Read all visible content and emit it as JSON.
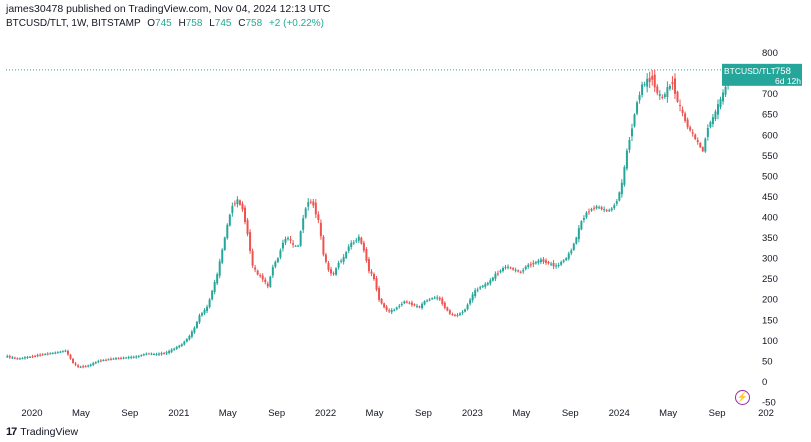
{
  "header": {
    "publish_text": "james30478 published on TradingView.com, Nov 04, 2024 12:13 UTC"
  },
  "legend": {
    "symbol": "BTCUSD/TLT, 1W, BITSTAMP",
    "o_label": "O",
    "o_value": "745",
    "h_label": "H",
    "h_value": "758",
    "l_label": "L",
    "l_value": "745",
    "c_label": "C",
    "c_value": "758",
    "change": "+2 (+0.22%)"
  },
  "price_tag": {
    "label": "BTCUSD/TLT",
    "value": "758",
    "countdown": "6d 12h"
  },
  "footer": {
    "brand": "TradingView",
    "logo": "17"
  },
  "icons": {
    "lightning": "lightning-icon"
  },
  "colors": {
    "up": "#26a69a",
    "down": "#ef5350",
    "price_line": "#26a69a",
    "accent": "#9c27b0"
  },
  "chart_data": {
    "type": "candlestick",
    "title": "BTCUSD/TLT, 1W, BITSTAMP",
    "ylim": [
      -50,
      850
    ],
    "y_ticks": [
      800,
      750,
      700,
      650,
      600,
      550,
      500,
      450,
      400,
      350,
      300,
      250,
      200,
      150,
      100,
      50,
      0,
      -50
    ],
    "x_ticks": [
      "2020",
      "May",
      "Sep",
      "2021",
      "May",
      "Sep",
      "2022",
      "May",
      "Sep",
      "2023",
      "May",
      "Sep",
      "2024",
      "May",
      "Sep",
      "202"
    ],
    "current_price": 758,
    "grid": false,
    "path": [
      [
        0,
        62
      ],
      [
        5,
        55
      ],
      [
        10,
        60
      ],
      [
        14,
        65
      ],
      [
        20,
        70
      ],
      [
        24,
        75
      ],
      [
        27,
        45
      ],
      [
        29,
        35
      ],
      [
        33,
        38
      ],
      [
        37,
        50
      ],
      [
        42,
        55
      ],
      [
        46,
        57
      ],
      [
        52,
        60
      ],
      [
        56,
        68
      ],
      [
        60,
        66
      ],
      [
        64,
        70
      ],
      [
        67,
        80
      ],
      [
        70,
        90
      ],
      [
        73,
        110
      ],
      [
        75,
        130
      ],
      [
        77,
        160
      ],
      [
        80,
        180
      ],
      [
        82,
        220
      ],
      [
        84,
        260
      ],
      [
        86,
        320
      ],
      [
        88,
        380
      ],
      [
        90,
        430
      ],
      [
        92,
        440
      ],
      [
        94,
        420
      ],
      [
        96,
        360
      ],
      [
        98,
        280
      ],
      [
        100,
        260
      ],
      [
        102,
        250
      ],
      [
        104,
        230
      ],
      [
        106,
        280
      ],
      [
        108,
        300
      ],
      [
        110,
        340
      ],
      [
        112,
        350
      ],
      [
        114,
        330
      ],
      [
        116,
        330
      ],
      [
        118,
        400
      ],
      [
        120,
        440
      ],
      [
        122,
        430
      ],
      [
        124,
        390
      ],
      [
        126,
        310
      ],
      [
        128,
        270
      ],
      [
        130,
        260
      ],
      [
        132,
        290
      ],
      [
        134,
        300
      ],
      [
        136,
        330
      ],
      [
        138,
        340
      ],
      [
        140,
        350
      ],
      [
        142,
        320
      ],
      [
        144,
        270
      ],
      [
        146,
        250
      ],
      [
        148,
        200
      ],
      [
        150,
        180
      ],
      [
        152,
        170
      ],
      [
        154,
        175
      ],
      [
        156,
        185
      ],
      [
        158,
        195
      ],
      [
        160,
        190
      ],
      [
        162,
        185
      ],
      [
        164,
        180
      ],
      [
        166,
        195
      ],
      [
        168,
        200
      ],
      [
        170,
        205
      ],
      [
        172,
        200
      ],
      [
        174,
        180
      ],
      [
        176,
        165
      ],
      [
        178,
        160
      ],
      [
        180,
        165
      ],
      [
        182,
        175
      ],
      [
        184,
        200
      ],
      [
        186,
        220
      ],
      [
        188,
        230
      ],
      [
        190,
        235
      ],
      [
        192,
        245
      ],
      [
        194,
        260
      ],
      [
        196,
        270
      ],
      [
        198,
        280
      ],
      [
        200,
        275
      ],
      [
        202,
        270
      ],
      [
        204,
        265
      ],
      [
        206,
        280
      ],
      [
        208,
        285
      ],
      [
        210,
        290
      ],
      [
        212,
        295
      ],
      [
        214,
        290
      ],
      [
        216,
        285
      ],
      [
        218,
        280
      ],
      [
        220,
        290
      ],
      [
        222,
        300
      ],
      [
        224,
        320
      ],
      [
        226,
        350
      ],
      [
        228,
        390
      ],
      [
        230,
        410
      ],
      [
        232,
        420
      ],
      [
        234,
        425
      ],
      [
        236,
        420
      ],
      [
        238,
        415
      ],
      [
        240,
        420
      ],
      [
        242,
        440
      ],
      [
        244,
        480
      ],
      [
        246,
        560
      ],
      [
        248,
        620
      ],
      [
        250,
        680
      ],
      [
        252,
        720
      ],
      [
        254,
        730
      ],
      [
        256,
        740
      ],
      [
        258,
        700
      ],
      [
        260,
        690
      ],
      [
        262,
        710
      ],
      [
        264,
        730
      ],
      [
        266,
        680
      ],
      [
        268,
        650
      ],
      [
        270,
        620
      ],
      [
        272,
        600
      ],
      [
        274,
        580
      ],
      [
        276,
        560
      ],
      [
        278,
        620
      ],
      [
        280,
        640
      ],
      [
        282,
        670
      ],
      [
        284,
        700
      ],
      [
        286,
        730
      ],
      [
        288,
        745
      ],
      [
        290,
        750
      ],
      [
        291,
        758
      ]
    ],
    "x_range": [
      0,
      291
    ]
  }
}
